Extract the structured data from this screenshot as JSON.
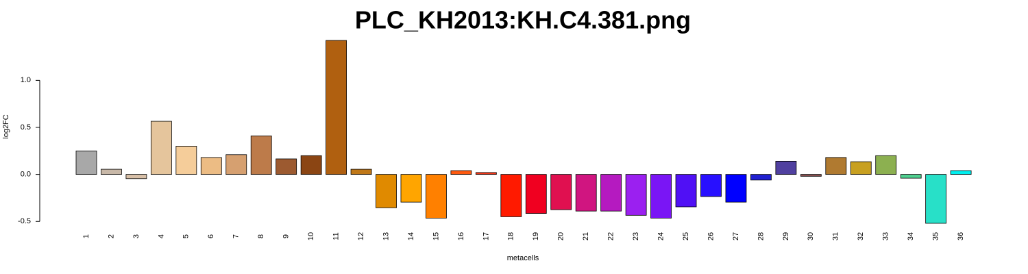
{
  "chart_data": {
    "type": "bar",
    "title": "PLC_KH2013:KH.C4.381.png",
    "x_label": "metacells",
    "y_label": "log2FC",
    "categories": [
      "1",
      "2",
      "3",
      "4",
      "5",
      "6",
      "7",
      "8",
      "9",
      "10",
      "11",
      "12",
      "13",
      "14",
      "15",
      "16",
      "17",
      "18",
      "19",
      "20",
      "21",
      "22",
      "23",
      "24",
      "25",
      "26",
      "27",
      "28",
      "29",
      "30",
      "31",
      "32",
      "33",
      "34",
      "35",
      "36"
    ],
    "values": [
      0.25,
      0.055,
      -0.045,
      0.565,
      0.3,
      0.18,
      0.21,
      0.41,
      0.165,
      0.2,
      1.425,
      0.055,
      -0.355,
      -0.295,
      -0.465,
      0.04,
      0.02,
      -0.45,
      -0.415,
      -0.375,
      -0.39,
      -0.39,
      -0.435,
      -0.465,
      -0.345,
      -0.235,
      -0.295,
      -0.06,
      0.14,
      -0.02,
      0.18,
      0.135,
      0.2,
      -0.04,
      -0.52,
      0.04
    ],
    "colors": [
      "#a8a8a8",
      "#c8b8a8",
      "#d8c0a8",
      "#e5c59c",
      "#f5cd9a",
      "#ecbc84",
      "#d6a070",
      "#bd7b4a",
      "#9c5a30",
      "#8b4513",
      "#b06010",
      "#c07818",
      "#e08a00",
      "#ffa500",
      "#ff8000",
      "#ff5a10",
      "#ff3a1a",
      "#ff1a00",
      "#f00020",
      "#e01050",
      "#d01580",
      "#b51ac0",
      "#9b20f0",
      "#7a15f5",
      "#5010f5",
      "#2810ff",
      "#0000ff",
      "#2020d0",
      "#5040a0",
      "#8a5050",
      "#b07a30",
      "#c8a020",
      "#8cb050",
      "#50d090",
      "#28e0c8",
      "#00f0f0"
    ],
    "ylim": [
      -0.52,
      1.425
    ],
    "yticks": [
      {
        "value": -0.5,
        "label": "-0.5"
      },
      {
        "value": 0,
        "label": "0.0"
      },
      {
        "value": 0.5,
        "label": "0.5"
      },
      {
        "value": 1,
        "label": "1.0"
      }
    ]
  }
}
